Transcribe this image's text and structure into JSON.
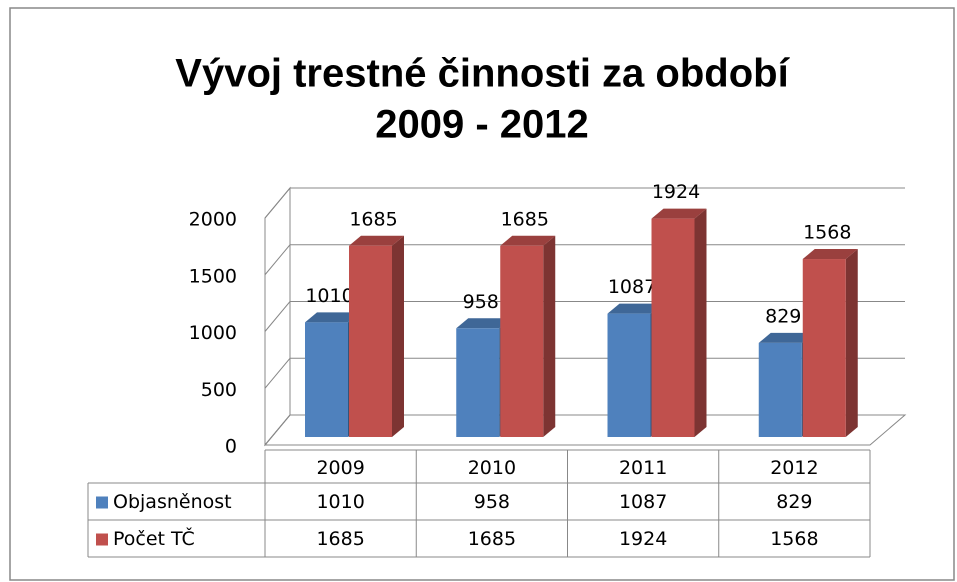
{
  "chart_data": {
    "type": "bar3d",
    "title": [
      "Vývoj trestné činnosti za období",
      "2009 - 2012"
    ],
    "categories": [
      "2009",
      "2010",
      "2011",
      "2012"
    ],
    "series": [
      {
        "name": "Objasněnost",
        "color": "#4f81bd",
        "values": [
          1010,
          958,
          1087,
          829
        ]
      },
      {
        "name": "Počet TČ",
        "color": "#c0504d",
        "values": [
          1685,
          1685,
          1924,
          1568
        ]
      }
    ],
    "ylim": [
      0,
      2000
    ],
    "yticks": [
      0,
      500,
      1000,
      1500,
      2000
    ],
    "grid": true,
    "data_table": true
  }
}
